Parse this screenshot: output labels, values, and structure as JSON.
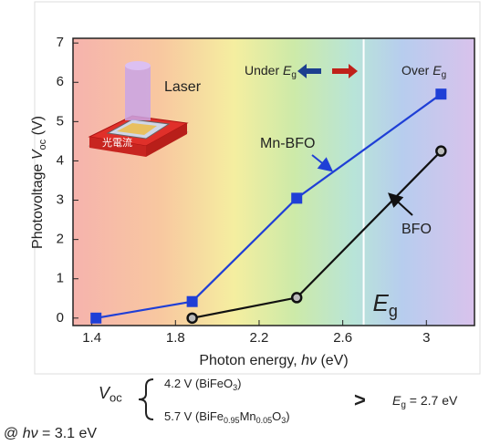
{
  "chart_data": {
    "type": "line",
    "y_label": [
      {
        "text": "Photovoltage "
      },
      {
        "text": "V",
        "italic": true
      },
      {
        "text": "oc",
        "sub": true
      },
      {
        "text": " (V)"
      }
    ],
    "x_label": [
      {
        "text": "Photon energy, "
      },
      {
        "text": "hν",
        "italic": true
      },
      {
        "text": " (eV)"
      }
    ],
    "xlim": [
      1.31,
      3.23
    ],
    "ylim": [
      -0.19,
      7.12
    ],
    "xticks": [
      1.4,
      1.8,
      2.2,
      2.6,
      3
    ],
    "yticks": [
      0,
      1,
      2,
      3,
      4,
      5,
      6,
      7
    ],
    "series": [
      {
        "name": "Mn-BFO",
        "color": "#1f3fd6",
        "marker": "square",
        "x": [
          1.42,
          1.88,
          2.38,
          3.07
        ],
        "values": [
          0,
          0.42,
          3.05,
          5.7
        ]
      },
      {
        "name": "BFO",
        "color": "#111111",
        "marker": "circle",
        "x": [
          1.88,
          2.38,
          3.07
        ],
        "values": [
          0,
          0.52,
          4.25
        ]
      }
    ],
    "eg_line": 2.7,
    "eg_label": [
      {
        "text": "E",
        "italic": true
      },
      {
        "text": "g",
        "sub": true
      }
    ],
    "under_label": [
      {
        "text": "Under "
      },
      {
        "text": "E",
        "italic": true
      },
      {
        "text": "g",
        "sub": true
      }
    ],
    "over_label": [
      {
        "text": "Over "
      },
      {
        "text": "E",
        "italic": true
      },
      {
        "text": "g",
        "sub": true
      }
    ],
    "inset": {
      "laser": "Laser",
      "current": "光電流"
    }
  },
  "footer": {
    "voc": [
      {
        "text": "V",
        "italic": true
      },
      {
        "text": "oc",
        "sub": true
      }
    ],
    "line1": [
      {
        "text": "4.2 V (BiFeO"
      },
      {
        "text": "3",
        "sub": true
      },
      {
        "text": ")"
      }
    ],
    "line2": [
      {
        "text": "5.7 V (BiFe"
      },
      {
        "text": "0.95",
        "sub": true
      },
      {
        "text": "Mn"
      },
      {
        "text": "0.05",
        "sub": true
      },
      {
        "text": "O"
      },
      {
        "text": "3",
        "sub": true
      },
      {
        "text": ")"
      }
    ],
    "compare": ">",
    "eg": [
      {
        "text": "E",
        "italic": true
      },
      {
        "text": "g",
        "sub": true
      },
      {
        "text": " = 2.7 eV"
      }
    ],
    "condition": [
      {
        "text": "@ "
      },
      {
        "text": "hν",
        "italic": true
      },
      {
        "text": " = 3.1 eV"
      }
    ]
  }
}
